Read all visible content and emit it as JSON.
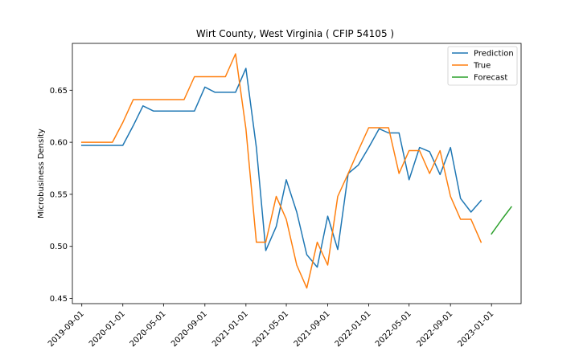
{
  "chart_data": {
    "type": "line",
    "title": "Wirt County, West Virginia ( CFIP 54105 )",
    "xlabel": "",
    "ylabel": "Microbusiness Density",
    "ylim": [
      0.445,
      0.695
    ],
    "xlim": [
      "2019-08-04",
      "2023-03-30"
    ],
    "yticks": [
      0.45,
      0.5,
      0.55,
      0.6,
      0.65
    ],
    "ytick_labels": [
      "0.45",
      "0.50",
      "0.55",
      "0.60",
      "0.65"
    ],
    "xticks": [
      "2019-09-01",
      "2020-01-01",
      "2020-05-01",
      "2020-09-01",
      "2021-01-01",
      "2021-05-01",
      "2021-09-01",
      "2022-01-01",
      "2022-05-01",
      "2022-09-01",
      "2023-01-01"
    ],
    "grid": false,
    "legend": "top-right",
    "series": [
      {
        "name": "Prediction",
        "color": "#1f77b4",
        "x": [
          "2019-09-01",
          "2019-10-01",
          "2019-11-01",
          "2019-12-01",
          "2020-01-01",
          "2020-02-01",
          "2020-03-01",
          "2020-04-01",
          "2020-05-01",
          "2020-06-01",
          "2020-07-01",
          "2020-08-01",
          "2020-09-01",
          "2020-10-01",
          "2020-11-01",
          "2020-12-01",
          "2021-01-01",
          "2021-02-01",
          "2021-03-01",
          "2021-04-01",
          "2021-05-01",
          "2021-06-01",
          "2021-07-01",
          "2021-08-01",
          "2021-09-01",
          "2021-10-01",
          "2021-11-01",
          "2021-12-01",
          "2022-01-01",
          "2022-02-01",
          "2022-03-01",
          "2022-04-01",
          "2022-05-01",
          "2022-06-01",
          "2022-07-01",
          "2022-08-01",
          "2022-09-01",
          "2022-10-01",
          "2022-11-01",
          "2022-12-01"
        ],
        "values": [
          0.597,
          0.597,
          0.597,
          0.597,
          0.597,
          0.616,
          0.635,
          0.63,
          0.63,
          0.63,
          0.63,
          0.63,
          0.653,
          0.648,
          0.648,
          0.648,
          0.671,
          0.595,
          0.496,
          0.519,
          0.564,
          0.533,
          0.492,
          0.48,
          0.529,
          0.497,
          0.57,
          0.578,
          0.595,
          0.613,
          0.609,
          0.609,
          0.564,
          0.595,
          0.591,
          0.569,
          0.595,
          0.546,
          0.533,
          0.544
        ]
      },
      {
        "name": "True",
        "color": "#ff7f0e",
        "x": [
          "2019-09-01",
          "2019-10-01",
          "2019-11-01",
          "2019-12-01",
          "2020-01-01",
          "2020-02-01",
          "2020-03-01",
          "2020-04-01",
          "2020-05-01",
          "2020-06-01",
          "2020-07-01",
          "2020-08-01",
          "2020-09-01",
          "2020-10-01",
          "2020-11-01",
          "2020-12-01",
          "2021-01-01",
          "2021-02-01",
          "2021-03-01",
          "2021-04-01",
          "2021-05-01",
          "2021-06-01",
          "2021-07-01",
          "2021-08-01",
          "2021-09-01",
          "2021-10-01",
          "2021-11-01",
          "2021-12-01",
          "2022-01-01",
          "2022-02-01",
          "2022-03-01",
          "2022-04-01",
          "2022-05-01",
          "2022-06-01",
          "2022-07-01",
          "2022-08-01",
          "2022-09-01",
          "2022-10-01",
          "2022-11-01",
          "2022-12-01"
        ],
        "values": [
          0.6,
          0.6,
          0.6,
          0.6,
          0.619,
          0.641,
          0.641,
          0.641,
          0.641,
          0.641,
          0.641,
          0.663,
          0.663,
          0.663,
          0.663,
          0.685,
          0.613,
          0.504,
          0.504,
          0.548,
          0.526,
          0.482,
          0.46,
          0.504,
          0.482,
          0.548,
          0.57,
          0.592,
          0.614,
          0.614,
          0.614,
          0.57,
          0.592,
          0.592,
          0.57,
          0.592,
          0.548,
          0.526,
          0.526,
          0.504
        ]
      },
      {
        "name": "Forecast",
        "color": "#2ca02c",
        "x": [
          "2023-01-01",
          "2023-02-01",
          "2023-03-01"
        ],
        "values": [
          0.512,
          0.526,
          0.538
        ]
      }
    ]
  }
}
